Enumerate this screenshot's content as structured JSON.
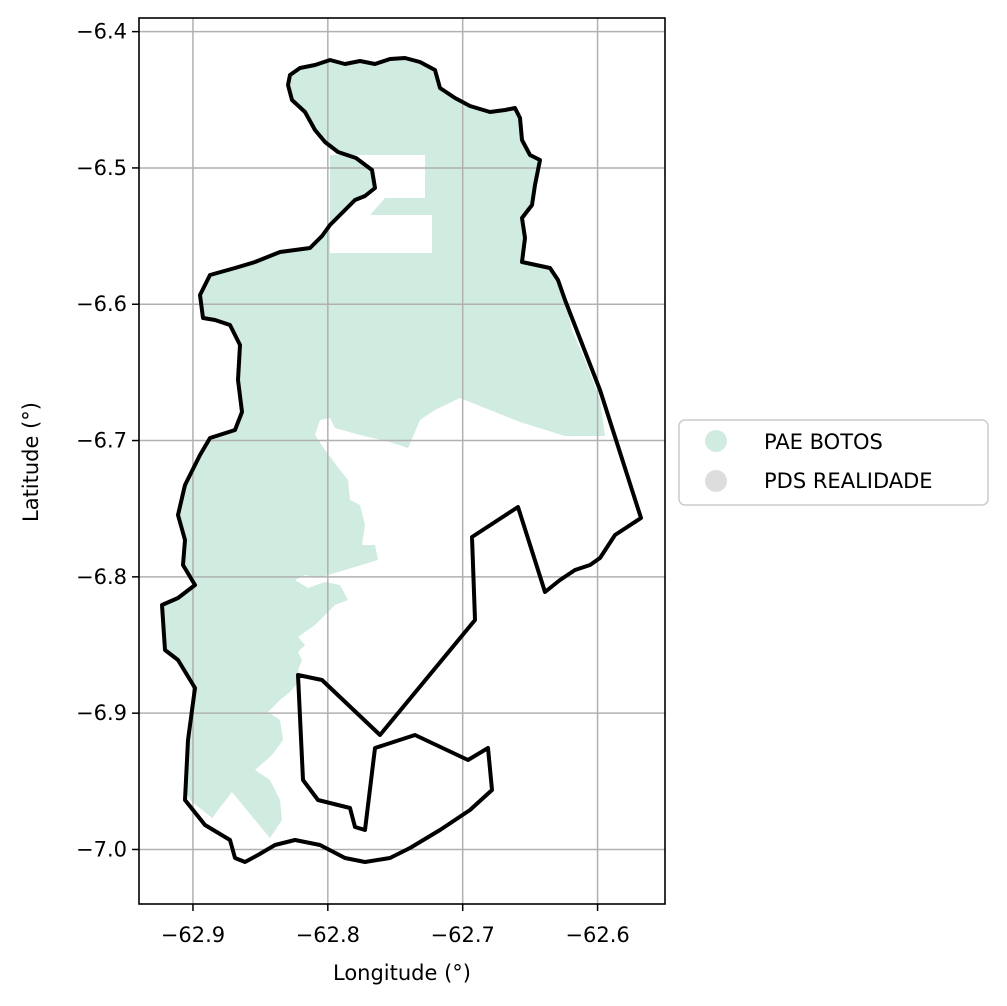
{
  "map": {
    "xlabel": "Longitude (°)",
    "ylabel": "Latitude (°)",
    "x_ticks": [
      "−62.9",
      "−62.8",
      "−62.7",
      "−62.6"
    ],
    "y_ticks": [
      "−6.4",
      "−6.5",
      "−6.6",
      "−6.7",
      "−6.8",
      "−6.9",
      "−7.0"
    ],
    "x_range": [
      -62.94,
      -62.55
    ],
    "y_range": [
      -7.04,
      -6.39
    ],
    "grid": true,
    "legend_placement": "center-right"
  },
  "legend": {
    "items": [
      {
        "label": "PAE BOTOS",
        "color": "#d0ebdf"
      },
      {
        "label": "PDS REALIDADE",
        "color": "#dddddd"
      }
    ]
  },
  "colors": {
    "fill": "#d0ebdf",
    "outline": "#000000",
    "grid": "#b0b0b0"
  }
}
